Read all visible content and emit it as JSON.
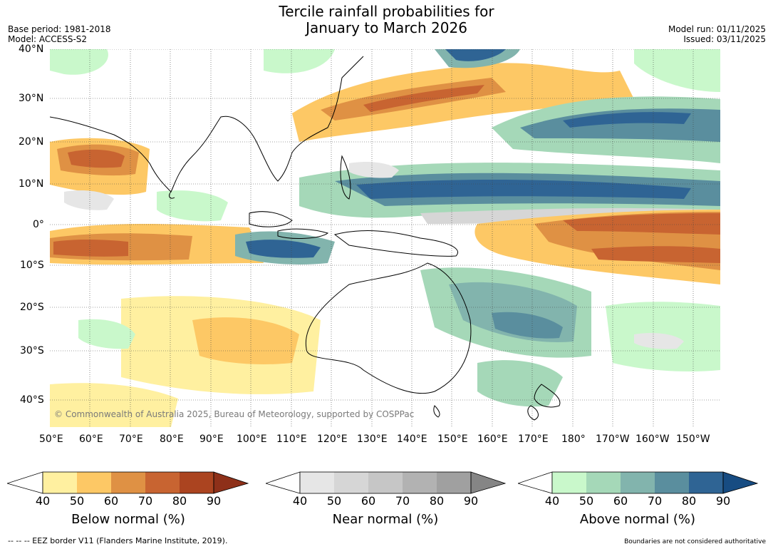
{
  "title": {
    "line1": "Tercile rainfall probabilities for",
    "line2": "January to March 2026"
  },
  "meta": {
    "base_period": "Base period: 1981-2018",
    "model": "Model: ACCESS-S2",
    "model_run": "Model run: 01/11/2025",
    "issued": "Issued: 03/11/2025"
  },
  "copyright": "© Commonwealth of Australia 2025, Bureau of Meteorology, supported by COSPPac",
  "axes": {
    "lat_labels": [
      "40°N",
      "30°N",
      "20°N",
      "10°N",
      "0°",
      "10°S",
      "20°S",
      "30°S",
      "40°S"
    ],
    "lon_labels": [
      "50°E",
      "60°E",
      "70°E",
      "80°E",
      "90°E",
      "100°E",
      "110°E",
      "120°E",
      "130°E",
      "140°E",
      "150°E",
      "160°E",
      "170°E",
      "180°",
      "170°W",
      "160°W",
      "150°W"
    ]
  },
  "colorbars": [
    {
      "title": "Below normal (%)",
      "ticks": [
        "40",
        "50",
        "60",
        "70",
        "80",
        "90"
      ],
      "colors": [
        "#fff0a0",
        "#fdc865",
        "#df9144",
        "#c86431",
        "#ab4420"
      ],
      "end_color": "#8e3019"
    },
    {
      "title": "Near normal (%)",
      "ticks": [
        "40",
        "50",
        "60",
        "70",
        "80",
        "90"
      ],
      "colors": [
        "#e6e6e6",
        "#d6d6d6",
        "#c6c6c6",
        "#b2b2b2",
        "#a0a0a0"
      ],
      "end_color": "#858585"
    },
    {
      "title": "Above normal (%)",
      "ticks": [
        "40",
        "50",
        "60",
        "70",
        "80",
        "90"
      ],
      "colors": [
        "#c9f8cb",
        "#a5d8b8",
        "#82b4ad",
        "#5a8e9e",
        "#2f6494"
      ],
      "end_color": "#174c82"
    }
  ],
  "footer": {
    "eez": "--  --  -- EEZ border V11 (Flanders Marine Institute, 2019).",
    "disclaimer": "Boundaries are not considered authoritative"
  }
}
